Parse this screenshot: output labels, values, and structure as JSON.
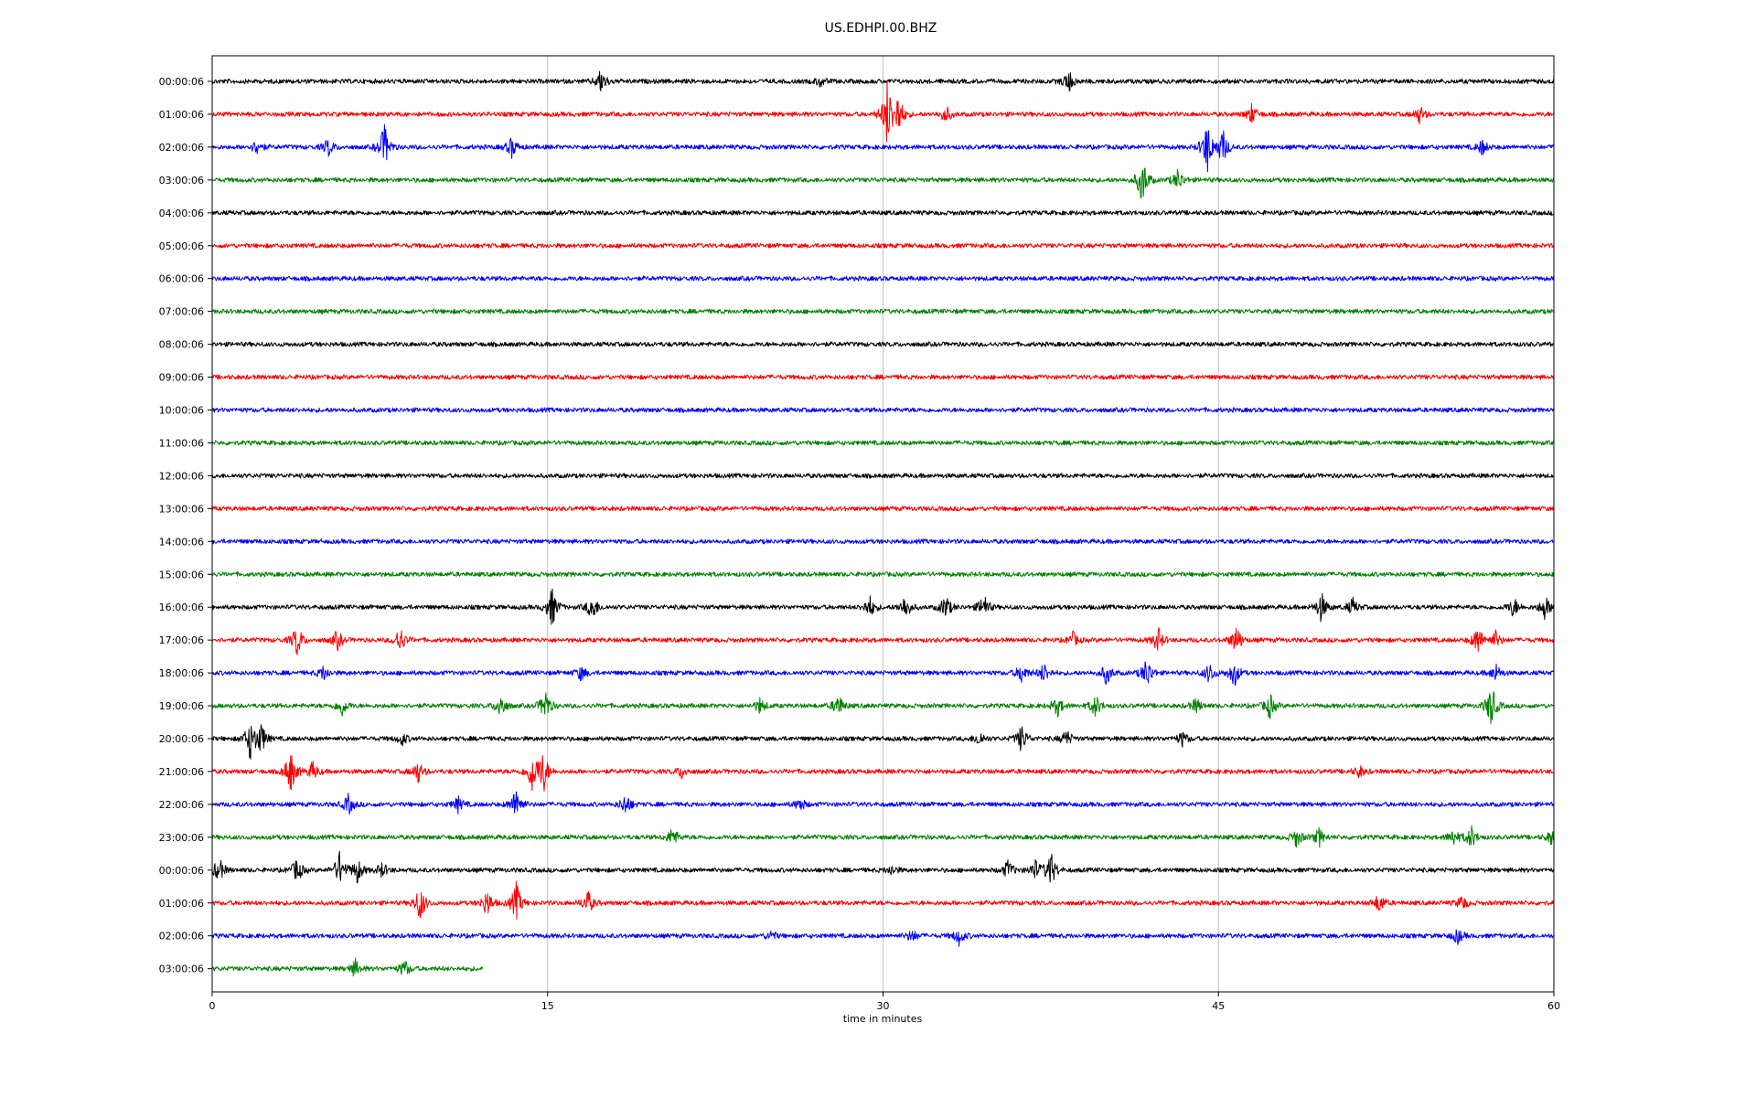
{
  "chart_data": {
    "type": "line",
    "title": "US.EDHPI.00.BHZ",
    "xlabel": "time in minutes",
    "ylabel": "",
    "xlim": [
      0,
      60
    ],
    "xticks": [
      "0",
      "15",
      "30",
      "45",
      "60"
    ],
    "xtick_values": [
      0,
      15,
      30,
      45,
      60
    ],
    "grid": "vertical lines at 15-minute ticks",
    "legend": "none",
    "colors": [
      "#000000",
      "#ff0000",
      "#0000ff",
      "#008000"
    ],
    "series": [
      {
        "label": "00:00:06",
        "end_minute": 60,
        "events": [
          [
            17.4,
            1.0
          ],
          [
            38.3,
            0.9
          ],
          [
            27.2,
            0.4
          ]
        ]
      },
      {
        "label": "01:00:06",
        "end_minute": 60,
        "events": [
          [
            30.2,
            2.8
          ],
          [
            30.7,
            1.6
          ],
          [
            32.8,
            0.7
          ],
          [
            46.5,
            0.8
          ],
          [
            54.0,
            0.7
          ]
        ]
      },
      {
        "label": "02:00:06",
        "end_minute": 60,
        "events": [
          [
            2.0,
            0.6
          ],
          [
            5.2,
            0.7
          ],
          [
            7.7,
            1.8
          ],
          [
            13.4,
            0.8
          ],
          [
            44.5,
            2.2
          ],
          [
            45.2,
            1.4
          ],
          [
            56.8,
            0.6
          ]
        ]
      },
      {
        "label": "03:00:06",
        "end_minute": 60,
        "events": [
          [
            41.6,
            2.0
          ],
          [
            43.2,
            0.9
          ]
        ]
      },
      {
        "label": "04:00:06",
        "end_minute": 60,
        "events": []
      },
      {
        "label": "05:00:06",
        "end_minute": 60,
        "events": []
      },
      {
        "label": "06:00:06",
        "end_minute": 60,
        "events": []
      },
      {
        "label": "07:00:06",
        "end_minute": 60,
        "events": []
      },
      {
        "label": "08:00:06",
        "end_minute": 60,
        "events": []
      },
      {
        "label": "09:00:06",
        "end_minute": 60,
        "events": []
      },
      {
        "label": "10:00:06",
        "end_minute": 60,
        "events": []
      },
      {
        "label": "11:00:06",
        "end_minute": 60,
        "events": []
      },
      {
        "label": "12:00:06",
        "end_minute": 60,
        "events": []
      },
      {
        "label": "13:00:06",
        "end_minute": 60,
        "events": []
      },
      {
        "label": "14:00:06",
        "end_minute": 60,
        "events": []
      },
      {
        "label": "15:00:06",
        "end_minute": 60,
        "events": []
      },
      {
        "label": "16:00:06",
        "end_minute": 60,
        "events": [
          [
            15.2,
            1.6
          ],
          [
            17.0,
            1.1
          ],
          [
            29.4,
            0.9
          ],
          [
            31.0,
            1.0
          ],
          [
            32.8,
            1.0
          ],
          [
            34.5,
            1.0
          ],
          [
            49.6,
            1.2
          ],
          [
            51.0,
            0.7
          ],
          [
            58.2,
            0.8
          ],
          [
            59.6,
            1.0
          ]
        ]
      },
      {
        "label": "17:00:06",
        "end_minute": 60,
        "events": [
          [
            3.8,
            1.3
          ],
          [
            5.6,
            0.8
          ],
          [
            8.4,
            1.1
          ],
          [
            38.5,
            0.6
          ],
          [
            42.3,
            1.0
          ],
          [
            45.8,
            1.2
          ],
          [
            56.6,
            1.2
          ],
          [
            57.4,
            0.7
          ]
        ]
      },
      {
        "label": "18:00:06",
        "end_minute": 60,
        "events": [
          [
            5.0,
            0.6
          ],
          [
            16.5,
            0.6
          ],
          [
            36.2,
            0.8
          ],
          [
            37.2,
            0.8
          ],
          [
            40.0,
            0.9
          ],
          [
            41.8,
            1.3
          ],
          [
            44.6,
            0.8
          ],
          [
            45.7,
            1.1
          ],
          [
            57.4,
            0.7
          ]
        ]
      },
      {
        "label": "19:00:06",
        "end_minute": 60,
        "events": [
          [
            5.8,
            0.8
          ],
          [
            12.9,
            1.0
          ],
          [
            14.9,
            1.3
          ],
          [
            24.5,
            0.6
          ],
          [
            28.0,
            0.9
          ],
          [
            37.8,
            0.8
          ],
          [
            39.5,
            0.9
          ],
          [
            44.0,
            0.6
          ],
          [
            47.3,
            1.0
          ],
          [
            57.2,
            1.8
          ]
        ]
      },
      {
        "label": "20:00:06",
        "end_minute": 60,
        "events": [
          [
            1.7,
            1.6
          ],
          [
            2.2,
            1.2
          ],
          [
            8.5,
            0.5
          ],
          [
            34.3,
            0.6
          ],
          [
            36.2,
            1.1
          ],
          [
            38.2,
            0.7
          ],
          [
            43.4,
            0.6
          ]
        ]
      },
      {
        "label": "21:00:06",
        "end_minute": 60,
        "events": [
          [
            3.5,
            1.8
          ],
          [
            4.5,
            0.8
          ],
          [
            9.2,
            0.9
          ],
          [
            14.3,
            1.6
          ],
          [
            14.8,
            1.8
          ],
          [
            21.0,
            0.5
          ],
          [
            51.3,
            0.5
          ]
        ]
      },
      {
        "label": "22:00:06",
        "end_minute": 60,
        "events": [
          [
            6.1,
            0.8
          ],
          [
            11.0,
            0.6
          ],
          [
            13.6,
            1.4
          ],
          [
            18.5,
            0.9
          ],
          [
            26.3,
            0.5
          ]
        ]
      },
      {
        "label": "23:00:06",
        "end_minute": 60,
        "events": [
          [
            20.6,
            0.8
          ],
          [
            48.5,
            0.8
          ],
          [
            49.5,
            0.7
          ],
          [
            55.5,
            0.7
          ],
          [
            56.3,
            0.9
          ],
          [
            59.9,
            0.6
          ]
        ]
      },
      {
        "label": "00:00:06",
        "end_minute": 60,
        "events": [
          [
            0.3,
            1.0
          ],
          [
            3.8,
            1.0
          ],
          [
            5.7,
            1.4
          ],
          [
            6.5,
            1.0
          ],
          [
            7.6,
            0.6
          ],
          [
            30.4,
            0.4
          ],
          [
            35.6,
            0.8
          ],
          [
            36.8,
            0.8
          ],
          [
            37.5,
            1.5
          ]
        ]
      },
      {
        "label": "01:00:06",
        "end_minute": 60,
        "events": [
          [
            9.3,
            1.5
          ],
          [
            12.3,
            1.1
          ],
          [
            13.6,
            1.6
          ],
          [
            16.8,
            1.0
          ],
          [
            52.2,
            0.8
          ],
          [
            55.9,
            0.6
          ]
        ]
      },
      {
        "label": "02:00:06",
        "end_minute": 60,
        "events": [
          [
            25.0,
            0.4
          ],
          [
            31.3,
            0.5
          ],
          [
            33.4,
            0.7
          ],
          [
            55.7,
            0.6
          ]
        ]
      },
      {
        "label": "03:00:06",
        "end_minute": 12.1,
        "events": [
          [
            6.4,
            0.7
          ],
          [
            8.6,
            0.7
          ]
        ]
      }
    ]
  }
}
